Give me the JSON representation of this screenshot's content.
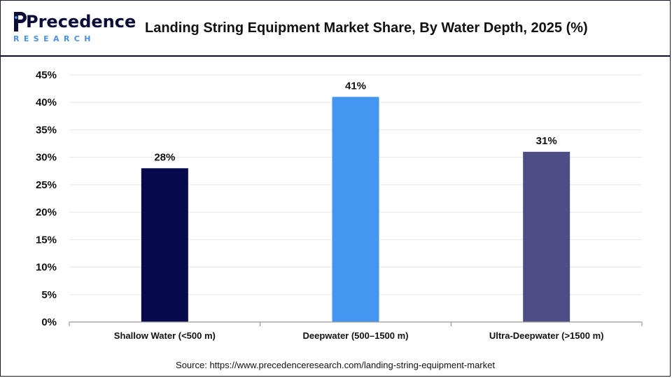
{
  "brand": {
    "logo_word": "Precedence",
    "logo_sub": "RESEARCH",
    "brand_dark": "#0b0b3a",
    "brand_accent": "#4a90e2"
  },
  "header": {
    "title": "Landing String Equipment Market Share, By Water Depth, 2025 (%)"
  },
  "source": "Source: https://www.precedenceresearch.com/landing-string-equipment-market",
  "chart_data": {
    "type": "bar",
    "title": "Landing String Equipment Market Share, By Water Depth, 2025 (%)",
    "xlabel": "",
    "ylabel": "",
    "categories": [
      "Shallow Water (<500 m)",
      "Deepwater (500–1500 m)",
      "Ultra-Deepwater (>1500 m)"
    ],
    "values": [
      28,
      41,
      31
    ],
    "data_labels": [
      "28%",
      "41%",
      "31%"
    ],
    "colors": [
      "#080a4e",
      "#4596f0",
      "#4d4e86"
    ],
    "ylim": [
      0,
      45
    ],
    "yticks": [
      0,
      5,
      10,
      15,
      20,
      25,
      30,
      35,
      40,
      45
    ],
    "ytick_labels": [
      "0%",
      "5%",
      "10%",
      "15%",
      "20%",
      "25%",
      "30%",
      "35%",
      "40%",
      "45%"
    ],
    "grid": true,
    "legend": "none"
  }
}
